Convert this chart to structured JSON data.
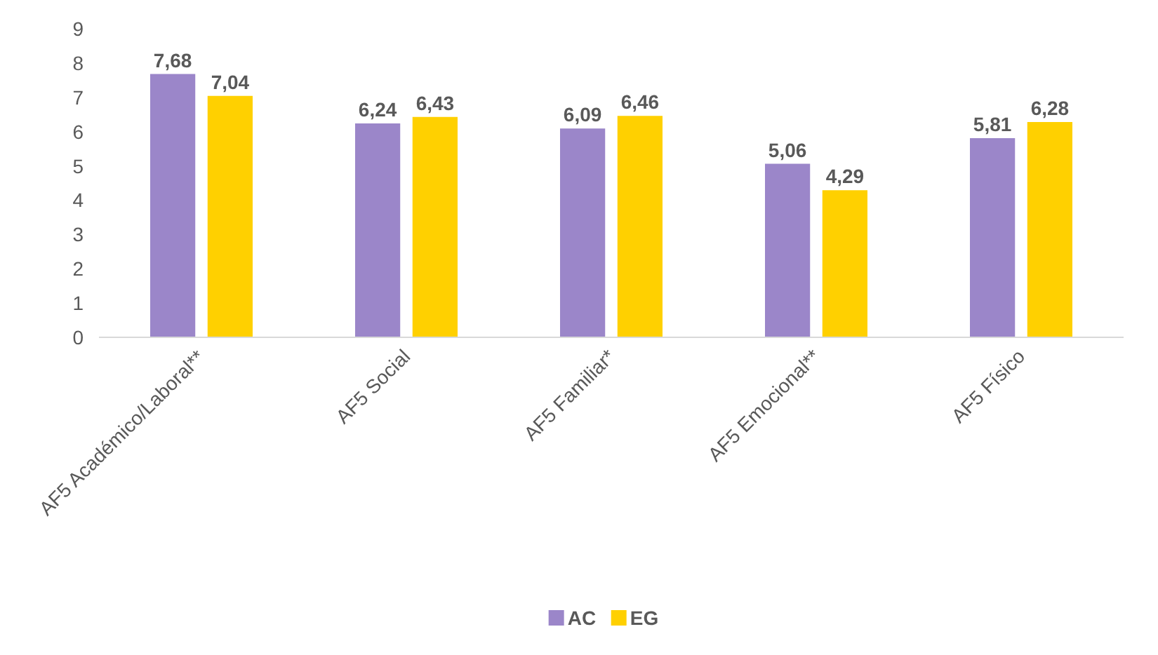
{
  "chart_data": {
    "type": "bar",
    "categories": [
      "AF5 Académico/Laboral**",
      "AF5 Social",
      "AF5 Familiar*",
      "AF5 Emocional**",
      "AF5 Físico"
    ],
    "series": [
      {
        "name": "AC",
        "color": "#9b86c9",
        "values": [
          7.68,
          6.24,
          6.09,
          5.06,
          5.81
        ],
        "value_labels": [
          "7,68",
          "6,24",
          "6,09",
          "5,06",
          "5,81"
        ]
      },
      {
        "name": "EG",
        "color": "#ffd000",
        "values": [
          7.04,
          6.43,
          6.46,
          4.29,
          6.28
        ],
        "value_labels": [
          "7,04",
          "6,43",
          "6,46",
          "4,29",
          "6,28"
        ]
      }
    ],
    "ylim": [
      0,
      9
    ],
    "yticks": [
      0,
      1,
      2,
      3,
      4,
      5,
      6,
      7,
      8,
      9
    ],
    "grid": false,
    "legend": "bottom"
  }
}
